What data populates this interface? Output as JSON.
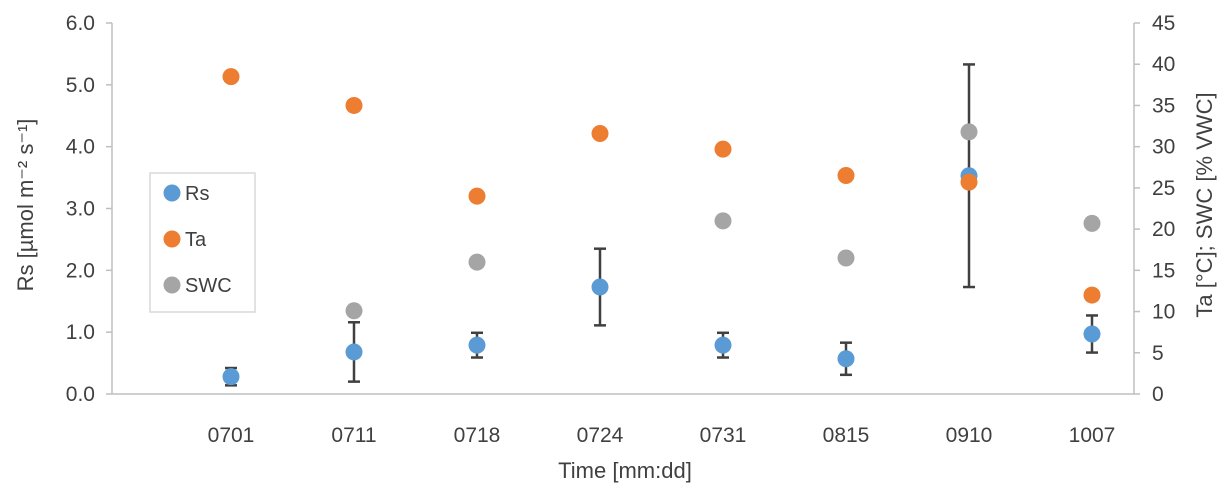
{
  "chart_data": {
    "type": "scatter",
    "title": "",
    "xlabel": "Time [mm:dd]",
    "ylabel_left": "Rs [µmol m⁻² s⁻¹]",
    "ylabel_right": "Ta [°C]; SWC [% VWC]",
    "ylim_left": [
      0,
      6
    ],
    "yticks_left": [
      "0.0",
      "1.0",
      "2.0",
      "3.0",
      "4.0",
      "5.0",
      "6.0"
    ],
    "ylim_right": [
      0,
      45
    ],
    "yticks_right": [
      "0",
      "5",
      "10",
      "15",
      "20",
      "25",
      "30",
      "35",
      "40",
      "45"
    ],
    "grid": false,
    "legend_position": "left, inside plot",
    "categories": [
      "0701",
      "0711",
      "0718",
      "0724",
      "0731",
      "0815",
      "0910",
      "1007"
    ],
    "series": [
      {
        "name": "Rs",
        "axis": "left",
        "color": "#5b9bd5",
        "values": [
          0.28,
          0.68,
          0.79,
          1.73,
          0.79,
          0.57,
          3.53,
          0.97
        ],
        "error": [
          0.14,
          0.48,
          0.2,
          0.62,
          0.2,
          0.26,
          1.8,
          0.3
        ]
      },
      {
        "name": "Ta",
        "axis": "right",
        "color": "#ed7d31",
        "values": [
          38.5,
          35.0,
          24.0,
          31.6,
          29.7,
          26.5,
          25.7,
          12.0
        ]
      },
      {
        "name": "SWC",
        "axis": "right",
        "color": "#a5a5a5",
        "values": [
          null,
          10.1,
          16.0,
          null,
          21.0,
          16.5,
          31.8,
          20.7
        ]
      }
    ]
  }
}
